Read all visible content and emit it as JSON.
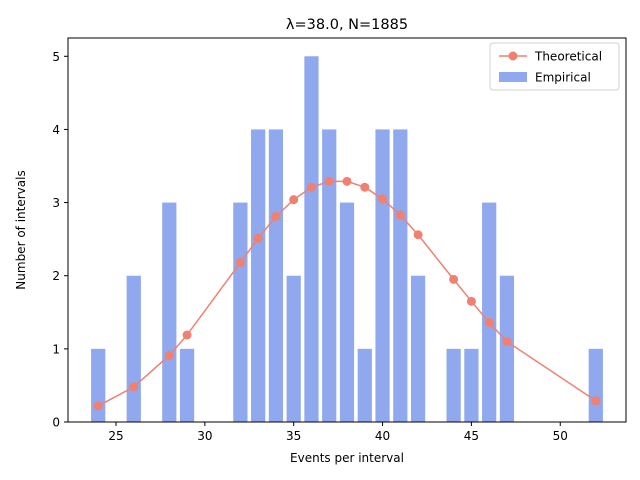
{
  "chart_data": {
    "type": "bar",
    "title": "λ=38.0, N=1885",
    "xlabel": "Events per interval",
    "ylabel": "Number of intervals",
    "xlim": [
      22.3,
      53.7
    ],
    "ylim": [
      0,
      5.25
    ],
    "xticks": [
      25,
      30,
      35,
      40,
      45,
      50
    ],
    "yticks": [
      0,
      1,
      2,
      3,
      4,
      5
    ],
    "legend_position": "top-right",
    "grid": false,
    "series": [
      {
        "name": "Empirical",
        "type": "bar",
        "color": "#8fa8ee",
        "x": [
          24,
          26,
          28,
          29,
          32,
          33,
          34,
          35,
          36,
          37,
          38,
          39,
          40,
          41,
          42,
          44,
          45,
          46,
          47,
          52
        ],
        "values": [
          1,
          2,
          3,
          1,
          3,
          4,
          4,
          2,
          5,
          4,
          3,
          1,
          4,
          4,
          2,
          1,
          1,
          3,
          2,
          1
        ]
      },
      {
        "name": "Theoretical",
        "type": "line",
        "color": "#f08070",
        "x": [
          24,
          26,
          28,
          29,
          32,
          33,
          34,
          35,
          36,
          37,
          38,
          39,
          40,
          41,
          42,
          44,
          45,
          46,
          47,
          52
        ],
        "values": [
          0.22,
          0.48,
          0.91,
          1.19,
          2.18,
          2.51,
          2.81,
          3.04,
          3.21,
          3.29,
          3.29,
          3.21,
          3.05,
          2.83,
          2.56,
          1.95,
          1.65,
          1.36,
          1.1,
          0.29
        ]
      }
    ]
  }
}
